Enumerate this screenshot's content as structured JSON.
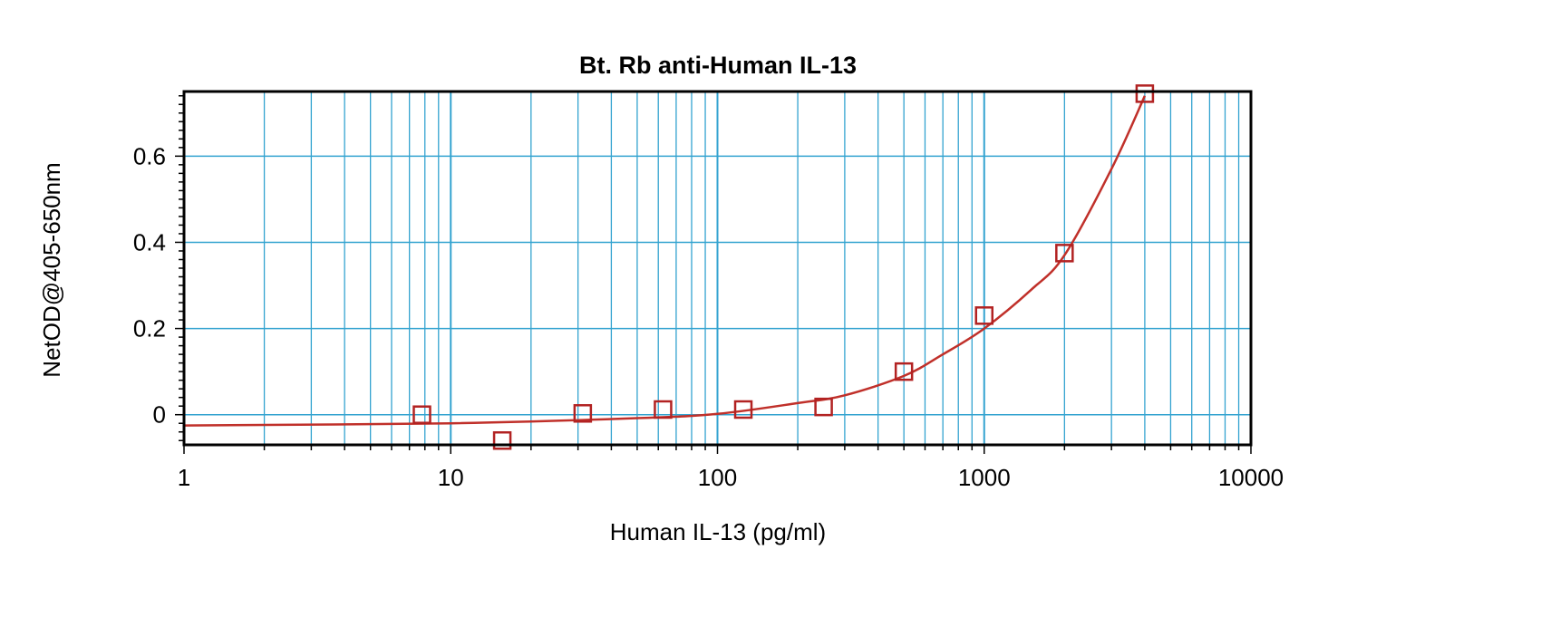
{
  "chart_data": {
    "type": "scatter",
    "title": "Bt. Rb anti-Human IL-13",
    "xlabel": "Human IL-13 (pg/ml)",
    "ylabel": "NetOD@405-650nm",
    "x_scale": "log",
    "xlim": [
      1,
      10000
    ],
    "ylim": [
      -0.07,
      0.75
    ],
    "x_ticks": [
      1,
      10,
      100,
      1000,
      10000
    ],
    "x_tick_labels": [
      "1",
      "10",
      "100",
      "1000",
      "10000"
    ],
    "y_ticks": [
      0,
      0.2,
      0.4,
      0.6
    ],
    "y_tick_labels": [
      "0",
      "0.2",
      "0.4",
      "0.6"
    ],
    "grid": true,
    "series": [
      {
        "marker": "open-square",
        "color": "#b22222",
        "points": [
          {
            "x": 7.8,
            "y": 0.0
          },
          {
            "x": 15.6,
            "y": -0.06
          },
          {
            "x": 31.25,
            "y": 0.003
          },
          {
            "x": 62.5,
            "y": 0.012
          },
          {
            "x": 125,
            "y": 0.012
          },
          {
            "x": 250,
            "y": 0.018
          },
          {
            "x": 500,
            "y": 0.1
          },
          {
            "x": 1000,
            "y": 0.23
          },
          {
            "x": 2000,
            "y": 0.375
          },
          {
            "x": 4000,
            "y": 0.745
          }
        ]
      }
    ],
    "fit_curve": {
      "color": "#c0302a",
      "points": [
        {
          "x": 1,
          "y": -0.025
        },
        {
          "x": 10,
          "y": -0.02
        },
        {
          "x": 50,
          "y": -0.008
        },
        {
          "x": 100,
          "y": 0.002
        },
        {
          "x": 200,
          "y": 0.027
        },
        {
          "x": 300,
          "y": 0.045
        },
        {
          "x": 500,
          "y": 0.09
        },
        {
          "x": 700,
          "y": 0.14
        },
        {
          "x": 1000,
          "y": 0.2
        },
        {
          "x": 1500,
          "y": 0.29
        },
        {
          "x": 2000,
          "y": 0.37
        },
        {
          "x": 3000,
          "y": 0.57
        },
        {
          "x": 4000,
          "y": 0.74
        }
      ]
    },
    "colors": {
      "grid": "#33a3d0",
      "frame": "#000000",
      "marker": "#b22222",
      "curve": "#c0302a"
    }
  }
}
